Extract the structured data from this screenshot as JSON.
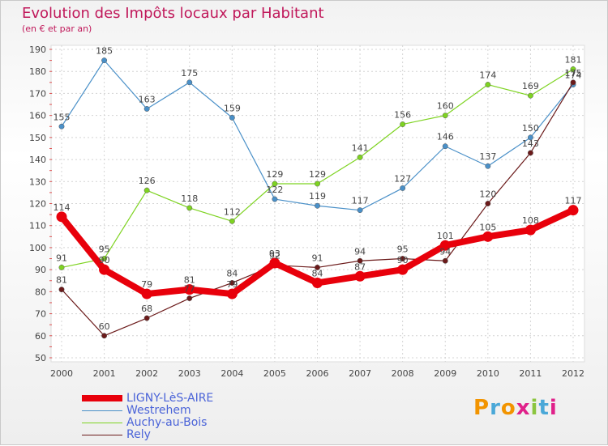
{
  "title": "Evolution des Impôts locaux par Habitant",
  "subtitle": "(en € et par an)",
  "logo": {
    "text": "Proxiti",
    "colors": [
      "#f29400",
      "#4aa8d8",
      "#f29400",
      "#e0218a",
      "#8bc53f",
      "#4aa8d8",
      "#e0218a"
    ]
  },
  "chart_data": {
    "type": "line",
    "x": [
      "2000",
      "2001",
      "2002",
      "2003",
      "2004",
      "2005",
      "2006",
      "2007",
      "2008",
      "2009",
      "2010",
      "2011",
      "2012"
    ],
    "ylim": [
      50,
      190
    ],
    "yticks": [
      50,
      60,
      70,
      80,
      90,
      100,
      110,
      120,
      130,
      140,
      150,
      160,
      170,
      180,
      190
    ],
    "grid": "dotted",
    "legend_position": "bottom-left",
    "series": [
      {
        "name": "LIGNY-LèS-AIRE",
        "color": "#e8000b",
        "values": [
          114,
          90,
          79,
          81,
          79,
          93,
          84,
          87,
          90,
          101,
          105,
          108,
          117
        ]
      },
      {
        "name": "Westrehem",
        "color": "#4a90c8",
        "values": [
          155,
          185,
          163,
          175,
          159,
          122,
          119,
          117,
          127,
          146,
          137,
          150,
          174
        ]
      },
      {
        "name": "Auchy-au-Bois",
        "color": "#7ed321",
        "values": [
          91,
          95,
          126,
          118,
          112,
          129,
          129,
          141,
          156,
          160,
          174,
          169,
          181
        ]
      },
      {
        "name": "Rely",
        "color": "#6b1a1a",
        "values": [
          81,
          60,
          68,
          77,
          84,
          92,
          91,
          94,
          95,
          94,
          120,
          143,
          175
        ]
      }
    ]
  }
}
